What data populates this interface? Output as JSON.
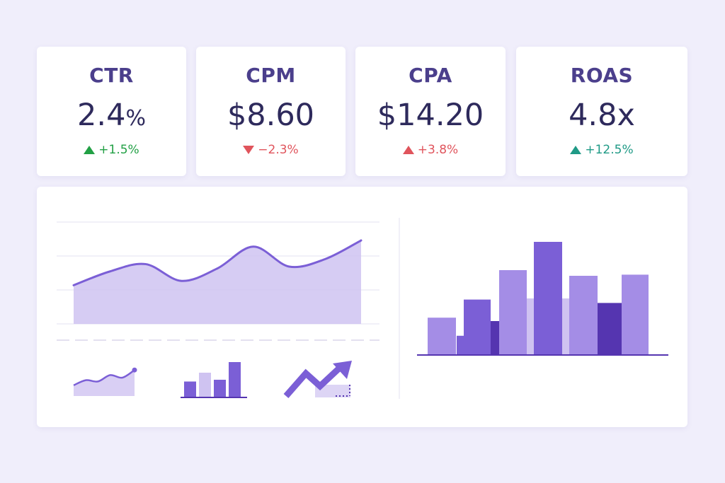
{
  "kpis": [
    {
      "label": "CTR",
      "value": "2.4",
      "unit": "%",
      "delta": "+1.5%",
      "direction": "up",
      "color": "#22a045"
    },
    {
      "label": "CPM",
      "value": "$8.60",
      "unit": "",
      "delta": "−2.3%",
      "direction": "down",
      "color": "#e0545c"
    },
    {
      "label": "CPA",
      "value": "$14.20",
      "unit": "",
      "delta": "+3.8%",
      "direction": "up",
      "color": "#e0545c"
    },
    {
      "label": "ROAS",
      "value": "4.8x",
      "unit": "",
      "delta": "+12.5%",
      "direction": "up",
      "color": "#1f9a86"
    }
  ],
  "colors": {
    "background": "#f0eefb",
    "accent": "#7b5fd6",
    "accent_light": "#a48de6",
    "accent_dark": "#5535b0",
    "area_fill": "#cfc3f1"
  },
  "chart_data": [
    {
      "type": "area",
      "x": [
        0,
        1,
        2,
        3,
        4,
        5,
        6,
        7,
        8
      ],
      "values": [
        28,
        50,
        62,
        35,
        55,
        90,
        58,
        70,
        100
      ]
    },
    {
      "type": "bar",
      "series": [
        {
          "values": [
            30,
            45,
            55,
            60,
            45,
            65,
            20,
            55
          ]
        },
        {
          "values": [
            15,
            40,
            30,
            100,
            50,
            70,
            45,
            72
          ]
        }
      ]
    },
    {
      "type": "line",
      "values": [
        20,
        40,
        35,
        60,
        50,
        80
      ]
    },
    {
      "type": "bar",
      "values": [
        45,
        70,
        50,
        100
      ]
    },
    {
      "type": "line",
      "values": [
        10,
        60,
        25,
        90
      ]
    }
  ]
}
